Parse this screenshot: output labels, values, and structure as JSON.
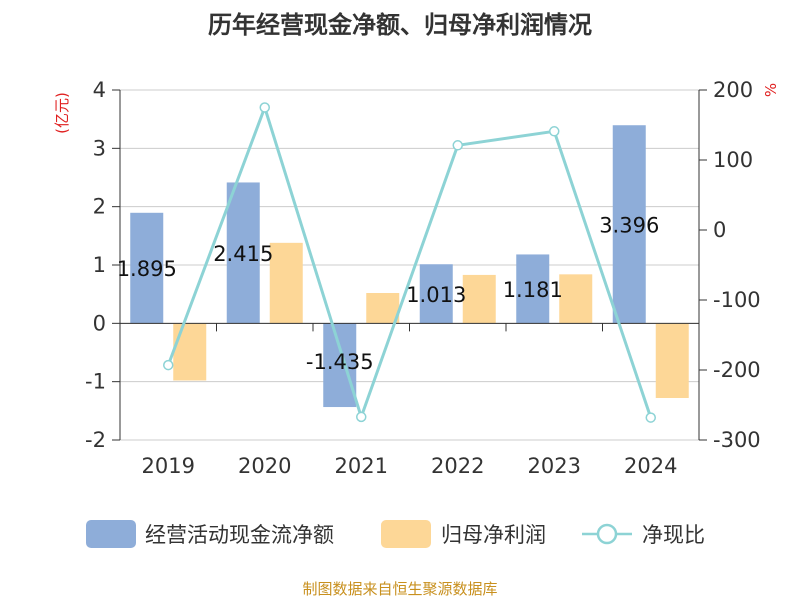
{
  "chart_data": {
    "type": "bar",
    "title": "历年经营现金净额、归母净利润情况",
    "categories": [
      "2019",
      "2020",
      "2021",
      "2022",
      "2023",
      "2024"
    ],
    "series": [
      {
        "name": "经营活动现金流净额",
        "type": "bar",
        "axis": "left",
        "color": "#8eadd9",
        "values": [
          1.895,
          2.415,
          -1.435,
          1.013,
          1.181,
          3.396
        ],
        "labels": [
          "1.895",
          "2.415",
          "-1.435",
          "1.013",
          "1.181",
          "3.396"
        ]
      },
      {
        "name": "归母净利润",
        "type": "bar",
        "axis": "left",
        "color": "#fdd797",
        "values": [
          -0.98,
          1.38,
          0.52,
          0.83,
          0.84,
          -1.28
        ]
      },
      {
        "name": "净现比",
        "type": "line",
        "axis": "right",
        "color": "#8dd3d5",
        "values": [
          -193,
          175,
          -267,
          121,
          141,
          -268
        ]
      }
    ],
    "y_left": {
      "unit": "(亿元)",
      "ylim": [
        -2,
        4
      ],
      "ticks": [
        "4",
        "3",
        "2",
        "1",
        "0",
        "-1",
        "-2"
      ]
    },
    "y_right": {
      "unit": "%",
      "ylim": [
        -300,
        200
      ],
      "ticks": [
        "200",
        "100",
        "0",
        "-100",
        "-200",
        "-300"
      ]
    },
    "grid": true,
    "legend_position": "bottom",
    "source": "制图数据来自恒生聚源数据库"
  }
}
